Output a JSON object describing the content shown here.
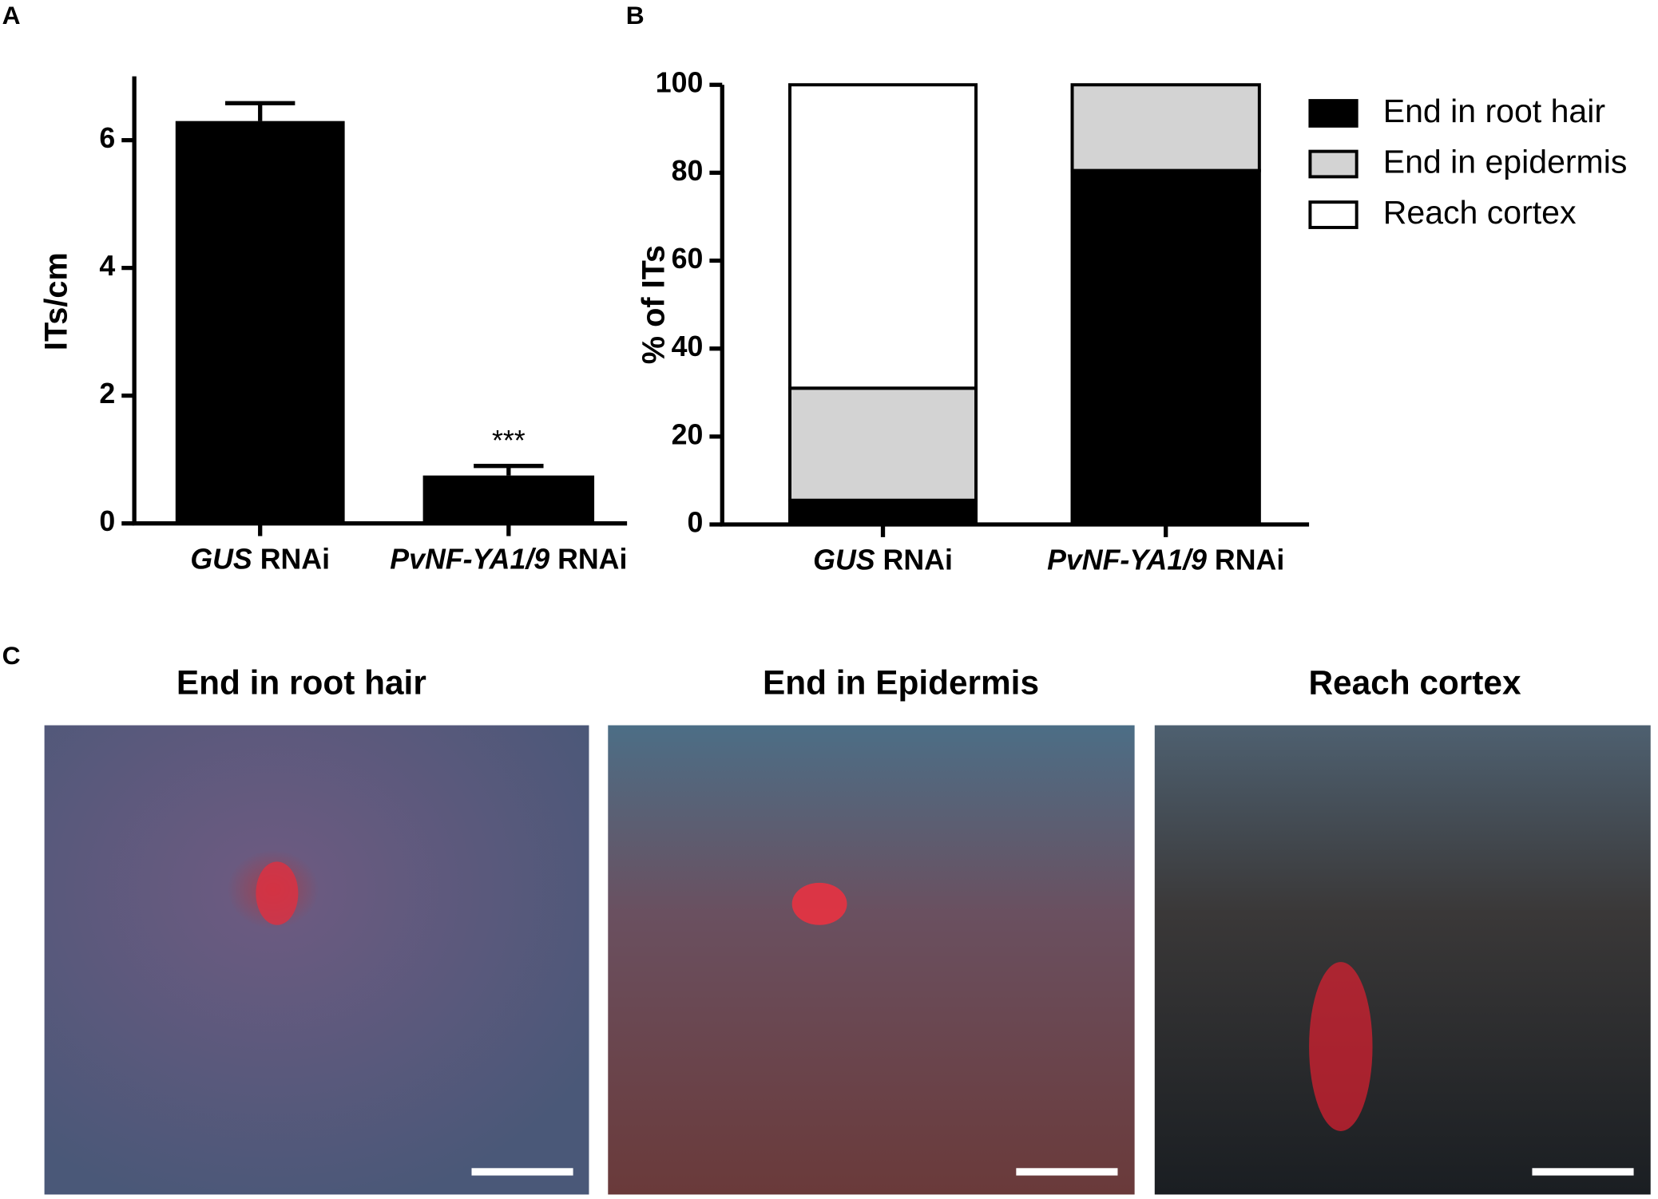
{
  "panel_labels": [
    "A",
    "B",
    "C"
  ],
  "chart_data": [
    {
      "type": "bar",
      "categories": [
        "GUS RNAi",
        "PvNF-YA1/9 RNAi"
      ],
      "values": [
        6.3,
        0.75
      ],
      "errors": [
        0.28,
        0.15
      ],
      "color": "#000000",
      "ylabel": "ITs/cm",
      "ylim": [
        0,
        7
      ],
      "yticks": [
        0,
        2,
        4,
        6
      ],
      "annotations": [
        "***"
      ]
    },
    {
      "type": "stacked_bar",
      "categories": [
        "GUS RNAi",
        "PvNF-YA1/9 RNAi"
      ],
      "ylabel": "% of ITs",
      "ylim": [
        0,
        100
      ],
      "yticks": [
        0,
        20,
        40,
        60,
        80,
        100
      ],
      "legend": "right",
      "series": [
        {
          "name": "End in root hair",
          "color": "#000000",
          "values": [
            5.5,
            80.5
          ]
        },
        {
          "name": "End in epidermis",
          "color": "#d3d3d3",
          "values": [
            25.5,
            19.5
          ]
        },
        {
          "name": "Reach cortex",
          "color": "#ffffff",
          "values": [
            69,
            0
          ]
        }
      ]
    }
  ],
  "images": [
    {
      "title": "End in root hair"
    },
    {
      "title": "End in Epidermis"
    },
    {
      "title": "Reach cortex"
    }
  ]
}
